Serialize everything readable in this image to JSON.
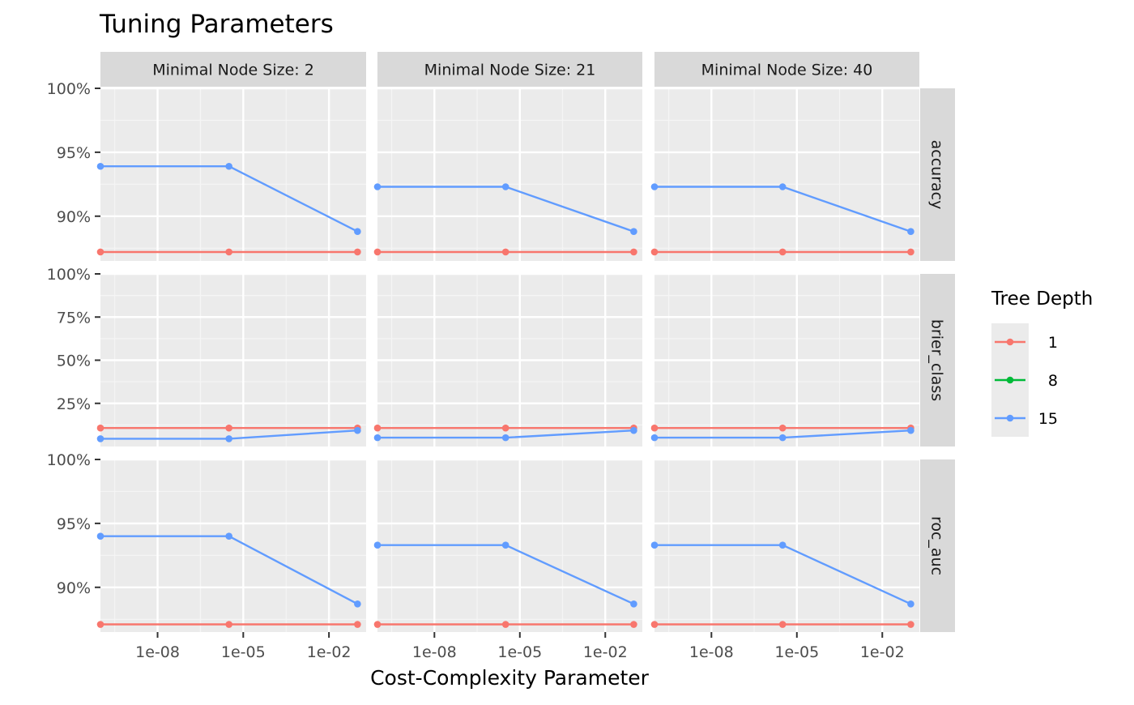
{
  "chart_data": {
    "type": "line",
    "title": "Tuning Parameters",
    "xlabel": "Cost-Complexity Parameter",
    "ylabel": "",
    "x_scale": "log10",
    "x_ticks": [
      "1e-08",
      "1e-05",
      "1e-02"
    ],
    "x_tick_values": [
      1e-08,
      1e-05,
      0.01
    ],
    "x_range": [
      1e-10,
      0.2
    ],
    "x": [
      1e-10,
      3.16e-06,
      0.1
    ],
    "columns": [
      "Minimal Node Size: 2",
      "Minimal Node Size: 21",
      "Minimal Node Size: 40"
    ],
    "rows": [
      {
        "metric": "accuracy",
        "ylim": [
          0.865,
          1.0
        ],
        "y_ticks": [
          0.9,
          0.95,
          1.0
        ],
        "y_tick_labels": [
          "90%",
          "95%",
          "100%"
        ]
      },
      {
        "metric": "brier_class",
        "ylim": [
          0.0,
          1.0
        ],
        "y_ticks": [
          0.25,
          0.5,
          0.75,
          1.0
        ],
        "y_tick_labels": [
          "25%",
          "50%",
          "75%",
          "100%"
        ]
      },
      {
        "metric": "roc_auc",
        "ylim": [
          0.865,
          1.0
        ],
        "y_ticks": [
          0.9,
          0.95,
          1.0
        ],
        "y_tick_labels": [
          "90%",
          "95%",
          "100%"
        ]
      }
    ],
    "legend": {
      "title": "Tree Depth",
      "position": "right",
      "entries": [
        {
          "name": "1",
          "color": "#F8766D"
        },
        {
          "name": "8",
          "color": "#00BA38"
        },
        {
          "name": "15",
          "color": "#619CFF"
        }
      ]
    },
    "panels": [
      {
        "row": 0,
        "col": 0,
        "series": [
          {
            "name": "1",
            "values": [
              0.872,
              0.872,
              0.872
            ]
          },
          {
            "name": "15",
            "values": [
              0.939,
              0.939,
              0.888
            ]
          }
        ]
      },
      {
        "row": 0,
        "col": 1,
        "series": [
          {
            "name": "1",
            "values": [
              0.872,
              0.872,
              0.872
            ]
          },
          {
            "name": "15",
            "values": [
              0.923,
              0.923,
              0.888
            ]
          }
        ]
      },
      {
        "row": 0,
        "col": 2,
        "series": [
          {
            "name": "1",
            "values": [
              0.872,
              0.872,
              0.872
            ]
          },
          {
            "name": "15",
            "values": [
              0.923,
              0.923,
              0.888
            ]
          }
        ]
      },
      {
        "row": 1,
        "col": 0,
        "series": [
          {
            "name": "1",
            "values": [
              0.107,
              0.107,
              0.107
            ]
          },
          {
            "name": "15",
            "values": [
              0.045,
              0.045,
              0.093
            ]
          }
        ]
      },
      {
        "row": 1,
        "col": 1,
        "series": [
          {
            "name": "1",
            "values": [
              0.107,
              0.107,
              0.107
            ]
          },
          {
            "name": "15",
            "values": [
              0.051,
              0.051,
              0.093
            ]
          }
        ]
      },
      {
        "row": 1,
        "col": 2,
        "series": [
          {
            "name": "1",
            "values": [
              0.107,
              0.107,
              0.107
            ]
          },
          {
            "name": "15",
            "values": [
              0.051,
              0.051,
              0.093
            ]
          }
        ]
      },
      {
        "row": 2,
        "col": 0,
        "series": [
          {
            "name": "1",
            "values": [
              0.871,
              0.871,
              0.871
            ]
          },
          {
            "name": "15",
            "values": [
              0.94,
              0.94,
              0.887
            ]
          }
        ]
      },
      {
        "row": 2,
        "col": 1,
        "series": [
          {
            "name": "1",
            "values": [
              0.871,
              0.871,
              0.871
            ]
          },
          {
            "name": "15",
            "values": [
              0.933,
              0.933,
              0.887
            ]
          }
        ]
      },
      {
        "row": 2,
        "col": 2,
        "series": [
          {
            "name": "1",
            "values": [
              0.871,
              0.871,
              0.871
            ]
          },
          {
            "name": "15",
            "values": [
              0.933,
              0.933,
              0.887
            ]
          }
        ]
      }
    ]
  }
}
